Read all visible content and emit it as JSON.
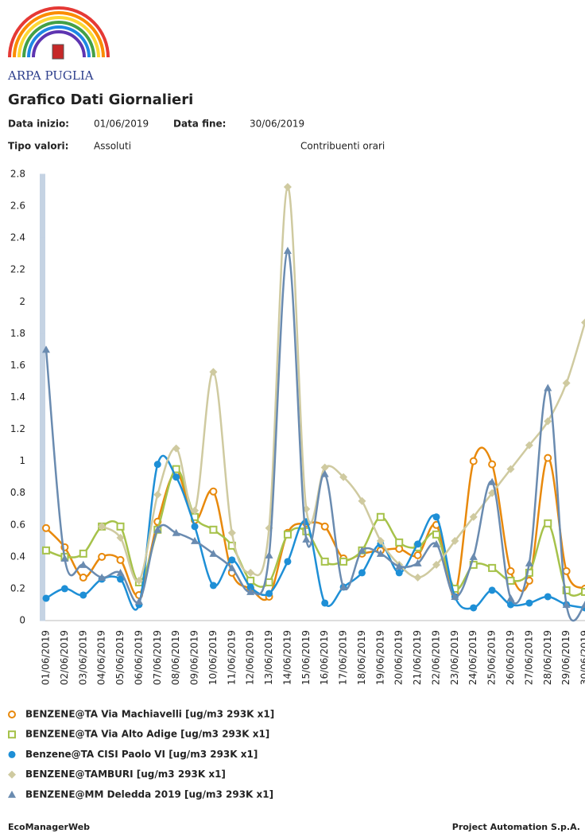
{
  "header": {
    "org": "ARPA PUGLIA",
    "title": "Grafico Dati Giornalieri",
    "start_label": "Data inizio:",
    "start": "01/06/2019",
    "end_label": "Data fine:",
    "end": "30/06/2019",
    "type_label": "Tipo valori:",
    "type": "Assoluti",
    "note": "Contribuenti orari"
  },
  "chart_data": {
    "type": "line",
    "ylim": [
      0,
      2.8
    ],
    "yticks": [
      0,
      0.2,
      0.4,
      0.6,
      0.8,
      1,
      1.2,
      1.4,
      1.6,
      1.8,
      2,
      2.2,
      2.4,
      2.6,
      2.8
    ],
    "categories": [
      "01/06/2019",
      "02/06/2019",
      "03/06/2019",
      "04/06/2019",
      "05/06/2019",
      "06/06/2019",
      "07/06/2019",
      "08/06/2019",
      "09/06/2019",
      "10/06/2019",
      "11/06/2019",
      "12/06/2019",
      "13/06/2019",
      "14/06/2019",
      "15/06/2019",
      "16/06/2019",
      "17/06/2019",
      "18/06/2019",
      "19/06/2019",
      "20/06/2019",
      "21/06/2019",
      "22/06/2019",
      "23/06/2019",
      "24/06/2019",
      "25/06/2019",
      "26/06/2019",
      "27/06/2019",
      "28/06/2019",
      "29/06/2019",
      "30/06/2019"
    ],
    "series": [
      {
        "name": "BENZENE@TA Via Machiavelli [ug/m3 293K x1]",
        "color": "#e8890c",
        "marker": "circle",
        "values": [
          0.58,
          0.46,
          0.27,
          0.4,
          0.38,
          0.16,
          0.62,
          0.93,
          0.63,
          0.81,
          0.3,
          0.2,
          0.15,
          0.55,
          0.61,
          0.59,
          0.39,
          0.42,
          0.44,
          0.45,
          0.41,
          0.6,
          0.17,
          1.0,
          0.98,
          0.31,
          0.25,
          1.02,
          0.31,
          0.2
        ]
      },
      {
        "name": "BENZENE@TA Via Alto Adige [ug/m3 293K x1]",
        "color": "#a6c24a",
        "marker": "square",
        "values": [
          0.44,
          0.4,
          0.42,
          0.59,
          0.59,
          0.24,
          0.57,
          0.95,
          0.65,
          0.57,
          0.47,
          0.25,
          0.24,
          0.54,
          0.56,
          0.37,
          0.37,
          0.44,
          0.65,
          0.49,
          0.46,
          0.54,
          0.2,
          0.35,
          0.33,
          0.25,
          0.3,
          0.61,
          0.19,
          0.18
        ]
      },
      {
        "name": "Benzene@TA CISI Paolo VI [ug/m3 293K x1]",
        "color": "#1e8fd6",
        "marker": "dot",
        "values": [
          0.14,
          0.2,
          0.16,
          0.26,
          0.26,
          0.1,
          0.98,
          0.9,
          0.59,
          0.22,
          0.38,
          0.21,
          0.17,
          0.37,
          0.62,
          0.11,
          0.21,
          0.3,
          0.48,
          0.3,
          0.48,
          0.65,
          0.15,
          0.08,
          0.19,
          0.1,
          0.11,
          0.15,
          0.1,
          0.08
        ]
      },
      {
        "name": "BENZENE@TAMBURI [ug/m3 293K x1]",
        "color": "#cfcaa0",
        "marker": "diamond",
        "values": [
          null,
          null,
          null,
          0.59,
          0.52,
          0.25,
          0.79,
          1.08,
          0.69,
          1.56,
          0.55,
          0.3,
          0.58,
          2.72,
          0.7,
          0.96,
          0.9,
          0.75,
          0.5,
          0.35,
          0.27,
          0.35,
          0.5,
          0.65,
          0.8,
          0.95,
          1.1,
          1.25,
          1.49,
          1.87
        ]
      },
      {
        "name": "BENZENE@MM Deledda 2019 [ug/m3 293K x1]",
        "color": "#6a8bb0",
        "marker": "triangle",
        "values": [
          1.7,
          0.39,
          0.35,
          0.27,
          0.3,
          0.12,
          0.57,
          0.55,
          0.5,
          0.42,
          0.33,
          0.18,
          0.41,
          2.32,
          0.51,
          0.92,
          0.21,
          0.44,
          0.42,
          0.34,
          0.36,
          0.48,
          0.15,
          0.4,
          0.87,
          0.14,
          0.36,
          1.46,
          0.1,
          0.1
        ]
      }
    ]
  },
  "footer": {
    "left": "EcoManagerWeb",
    "right": "Project Automation S.p.A."
  }
}
